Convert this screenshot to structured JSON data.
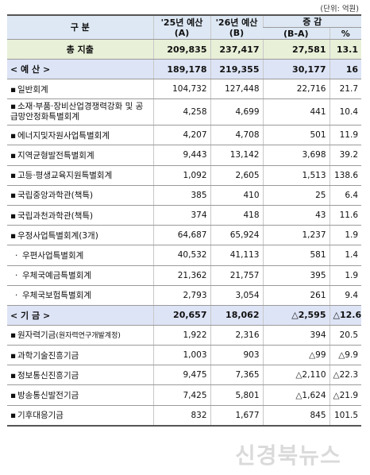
{
  "unit_note": "(단위: 억원)",
  "header": {
    "category": "구   분",
    "col_a_line1": "'25년 예산",
    "col_a_line2": "(A)",
    "col_b_line1": "'26년 예산",
    "col_b_line2": "(B)",
    "change": "증 감",
    "diff_label": "(B-A)",
    "pct_label": "%"
  },
  "total": {
    "label": "총 지출",
    "a": "209,835",
    "b": "237,417",
    "diff": "27,581",
    "pct": "13.1"
  },
  "budget_section": {
    "label": "< 예 산 >",
    "a": "189,178",
    "b": "219,355",
    "diff": "30,177",
    "pct": "16"
  },
  "budget_items": [
    {
      "bullet": "▪",
      "label": "일반회계",
      "a": "104,732",
      "b": "127,448",
      "diff": "22,716",
      "pct": "21.7"
    },
    {
      "bullet": "▪",
      "label": "소재·부품·장비산업경쟁력강화 및 공급망안정화특별회계",
      "a": "4,258",
      "b": "4,699",
      "diff": "441",
      "pct": "10.4"
    },
    {
      "bullet": "▪",
      "label": "에너지및자원사업특별회계",
      "a": "4,207",
      "b": "4,708",
      "diff": "501",
      "pct": "11.9"
    },
    {
      "bullet": "▪",
      "label": "지역균형발전특별회계",
      "a": "9,443",
      "b": "13,142",
      "diff": "3,698",
      "pct": "39.2"
    },
    {
      "bullet": "▪",
      "label": "고등·평생교육지원특별회계",
      "a": "1,092",
      "b": "2,605",
      "diff": "1,513",
      "pct": "138.6"
    },
    {
      "bullet": "▪",
      "label": "국립중앙과학관(책특)",
      "a": "385",
      "b": "410",
      "diff": "25",
      "pct": "6.4"
    },
    {
      "bullet": "▪",
      "label": "국립과천과학관(책특)",
      "a": "374",
      "b": "418",
      "diff": "43",
      "pct": "11.6"
    },
    {
      "bullet": "▪",
      "label": "우정사업특별회계(3개)",
      "a": "64,687",
      "b": "65,924",
      "diff": "1,237",
      "pct": "1.9"
    },
    {
      "bullet": "·",
      "label": "우편사업특별회계",
      "a": "40,532",
      "b": "41,113",
      "diff": "581",
      "pct": "1.4"
    },
    {
      "bullet": "·",
      "label": "우체국예금특별회계",
      "a": "21,362",
      "b": "21,757",
      "diff": "395",
      "pct": "1.9"
    },
    {
      "bullet": "·",
      "label": "우체국보험특별회계",
      "a": "2,793",
      "b": "3,054",
      "diff": "261",
      "pct": "9.4"
    }
  ],
  "fund_section": {
    "label": "< 기 금 >",
    "a": "20,657",
    "b": "18,062",
    "diff": "△2,595",
    "pct": "△12.6"
  },
  "fund_items": [
    {
      "bullet": "▪",
      "label": "원자력기금",
      "label_small": "(원자력연구개발계정)",
      "a": "1,922",
      "b": "2,316",
      "diff": "394",
      "pct": "20.5"
    },
    {
      "bullet": "▪",
      "label": "과학기술진흥기금",
      "a": "1,003",
      "b": "903",
      "diff": "△99",
      "pct": "△9.9"
    },
    {
      "bullet": "▪",
      "label": "정보통신진흥기금",
      "a": "9,475",
      "b": "7,365",
      "diff": "△2,110",
      "pct": "△22.3"
    },
    {
      "bullet": "▪",
      "label": "방송통신발전기금",
      "a": "7,425",
      "b": "5,801",
      "diff": "△1,624",
      "pct": "△21.9"
    },
    {
      "bullet": "▪",
      "label": "기후대응기금",
      "a": "832",
      "b": "1,677",
      "diff": "845",
      "pct": "101.5"
    }
  ],
  "watermark": "신경북뉴스"
}
